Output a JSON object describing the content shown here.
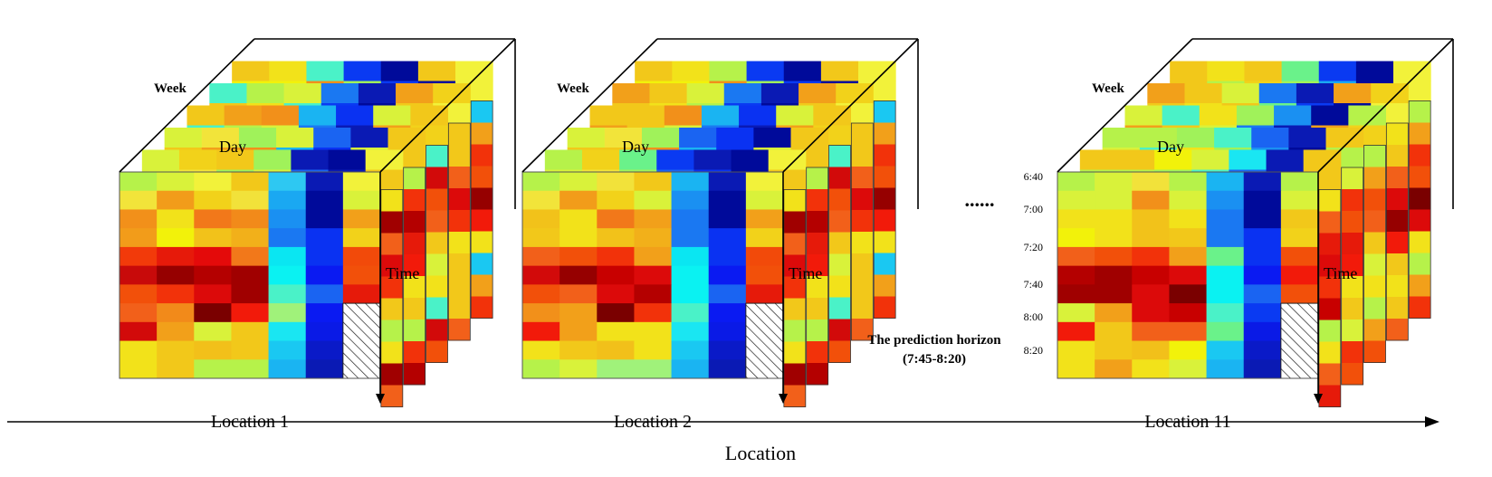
{
  "cubes": [
    {
      "caption": "Location 1",
      "week_label": "Week",
      "day_label": "Day",
      "time_label": "Time",
      "front": [
        [
          "#b6f24a",
          "#d9f23a",
          "#f2f23a",
          "#f2c81a",
          "#2ec8f2",
          "#0a1ab4",
          "#f2f23a"
        ],
        [
          "#f2e43a",
          "#f29c1a",
          "#f2d21a",
          "#f2e23a",
          "#1aa8f2",
          "#000a9a",
          "#d9f23a"
        ],
        [
          "#f2901a",
          "#f2e21a",
          "#f2781a",
          "#f28a1a",
          "#1a90f2",
          "#000a9a",
          "#f2a01a"
        ],
        [
          "#f29c1a",
          "#f2f20a",
          "#f2c21a",
          "#f2b01a",
          "#1a78f2",
          "#0a32f2",
          "#f2d21a"
        ],
        [
          "#f23a0a",
          "#e61a0a",
          "#e40a0a",
          "#f2781a",
          "#0ae6f2",
          "#0a32f2",
          "#f24a0a"
        ],
        [
          "#c80a0a",
          "#960000",
          "#b40000",
          "#a00000",
          "#0af2f2",
          "#0a1af2",
          "#f2500a"
        ],
        [
          "#f2500a",
          "#f2320a",
          "#dc0a0a",
          "#a00000",
          "#4af2c8",
          "#1a64f2",
          "#e61a0a"
        ],
        [
          "#f2601a",
          "#f28a1a",
          "#7a0000",
          "#f21a0a",
          "#a0f27a",
          "#0a1af2",
          "hatch"
        ],
        [
          "#d20a0a",
          "#f2a01a",
          "#d9f23a",
          "#f2c81a",
          "#1ae6f2",
          "#0a1ae6",
          "hatch"
        ],
        [
          "#f2e21a",
          "#f2c81a",
          "#f2c01a",
          "#f2c81a",
          "#1ac8f2",
          "#0a1ac8",
          "hatch"
        ],
        [
          "#f2e21a",
          "#f2c81a",
          "#b6f24a",
          "#b6f24a",
          "#1ab4f2",
          "#0a1ab4",
          "hatch"
        ]
      ],
      "back": [
        [
          "#f2f20a",
          "#f2f20a",
          "#f2901a",
          "#a0f25a",
          "#0a3af2",
          "#000a9a",
          "#f2f23a"
        ],
        [
          "#d9f23a",
          "#f2d21a",
          "#f2c81a",
          "#a0f25a",
          "#0a1ab4",
          "#000a9a",
          "#f2f23a"
        ],
        [
          "#d9f23a",
          "#f2e43a",
          "#a0f25a",
          "#d9f23a",
          "#1a64f2",
          "#0a1ab4",
          "#f2c81a"
        ],
        [
          "#f2c81a",
          "#f2a01a",
          "#f2901a",
          "#1ab4f2",
          "#0a32f2",
          "#d9f23a",
          "#f2c81a"
        ],
        [
          "#4af2c8",
          "#b6f24a",
          "#d9f23a",
          "#1a78f2",
          "#0a1ab4",
          "#f2a01a",
          "#f2d21a"
        ],
        [
          "#f2c81a",
          "#f2e21a",
          "#4af2c8",
          "#0a3af2",
          "#000a9a",
          "#f2c81a",
          "#f2f23a"
        ]
      ],
      "side": [
        [
          "#f2c81a",
          "#f2c81a",
          "#f2601a",
          "#dc0a0a",
          "#f2320a",
          "#f2e21a",
          "#f2c81a"
        ],
        [
          "#1ac8f2",
          "#f2a01a",
          "#f2320a",
          "#f2500a",
          "#960000",
          "#f21a0a",
          "#f2e21a"
        ],
        [
          "#f2e21a",
          "#a00000",
          "#f2601a",
          "#dc0a0a",
          "#f2320a",
          "#f2c81a",
          "#b6f24a"
        ],
        [
          "#b6f24a",
          "#f2320a",
          "#b40000",
          "#e61a0a",
          "#f21a0a",
          "#f2e21a",
          "#f2c81a"
        ],
        [
          "#4af2c8",
          "#d20a0a",
          "#f2500a",
          "#f2601a",
          "#f2c81a",
          "#d9f23a",
          "#f2e21a"
        ]
      ]
    },
    {
      "caption": "Location 2",
      "week_label": "Week",
      "day_label": "Day",
      "time_label": "Time",
      "front": [
        [
          "#b6f24a",
          "#d9f23a",
          "#f2e23a",
          "#f2c81a",
          "#1ab4f2",
          "#0a1ab4",
          "#f2f23a"
        ],
        [
          "#f2e43a",
          "#f29c1a",
          "#f2d21a",
          "#d9f23a",
          "#1a90f2",
          "#000a9a",
          "#d9f23a"
        ],
        [
          "#f2c21a",
          "#f2e21a",
          "#f2781a",
          "#f2a01a",
          "#1a78f2",
          "#000a9a",
          "#f2a01a"
        ],
        [
          "#f2c81a",
          "#f2e21a",
          "#f2c21a",
          "#f2b01a",
          "#1a78f2",
          "#0a32f2",
          "#f2d21a"
        ],
        [
          "#f2601a",
          "#f2500a",
          "#f2320a",
          "#f2a01a",
          "#0ae6f2",
          "#0a32f2",
          "#f24a0a"
        ],
        [
          "#d20a0a",
          "#960000",
          "#c80000",
          "#dc0a0a",
          "#0af2f2",
          "#0a1af2",
          "#f2500a"
        ],
        [
          "#f2500a",
          "#f2601a",
          "#dc0a0a",
          "#b40000",
          "#0af2f2",
          "#1a64f2",
          "#e61a0a"
        ],
        [
          "#f2901a",
          "#f2a01a",
          "#7a0000",
          "#f2320a",
          "#4af2c8",
          "#0a1af2",
          "hatch"
        ],
        [
          "#f21a0a",
          "#f2a01a",
          "#f2e21a",
          "#f2e21a",
          "#1ae6f2",
          "#0a1ae6",
          "hatch"
        ],
        [
          "#f2e21a",
          "#f2c81a",
          "#f2c01a",
          "#f2e21a",
          "#1ac8f2",
          "#0a1ac8",
          "hatch"
        ],
        [
          "#b6f24a",
          "#d9f23a",
          "#a0f27a",
          "#a0f27a",
          "#1ab4f2",
          "#0a1ab4",
          "hatch"
        ]
      ],
      "back": [
        [
          "#f2f20a",
          "#f2f20a",
          "#f2901a",
          "#a0f25a",
          "#0a3af2",
          "#000a9a",
          "#f2f23a"
        ],
        [
          "#b6f24a",
          "#f2d21a",
          "#6af28a",
          "#0a3af2",
          "#0a1ab4",
          "#000a9a",
          "#f2f23a"
        ],
        [
          "#d9f23a",
          "#f2e43a",
          "#a0f25a",
          "#1a64f2",
          "#0a32f2",
          "#000a9a",
          "#f2c81a"
        ],
        [
          "#f2c81a",
          "#f2c81a",
          "#f2901a",
          "#1ab4f2",
          "#0a32f2",
          "#d9f23a",
          "#f2c81a"
        ],
        [
          "#f2a01a",
          "#f2c81a",
          "#d9f23a",
          "#1a78f2",
          "#0a1ab4",
          "#f2a01a",
          "#f2d21a"
        ],
        [
          "#f2c81a",
          "#f2e21a",
          "#b6f24a",
          "#0a3af2",
          "#000a9a",
          "#f2c81a",
          "#f2f23a"
        ]
      ],
      "side": [
        [
          "#f2c81a",
          "#f2c81a",
          "#f2601a",
          "#dc0a0a",
          "#f2320a",
          "#f2e21a",
          "#f2c81a"
        ],
        [
          "#1ac8f2",
          "#f2a01a",
          "#f2320a",
          "#f2500a",
          "#960000",
          "#f21a0a",
          "#f2e21a"
        ],
        [
          "#f2e21a",
          "#a00000",
          "#f2601a",
          "#dc0a0a",
          "#f2320a",
          "#f2c81a",
          "#b6f24a"
        ],
        [
          "#b6f24a",
          "#f2320a",
          "#b40000",
          "#e61a0a",
          "#f21a0a",
          "#f2e21a",
          "#f2c81a"
        ],
        [
          "#4af2c8",
          "#d20a0a",
          "#f2500a",
          "#f2601a",
          "#f2c81a",
          "#d9f23a",
          "#f2e21a"
        ]
      ]
    },
    {
      "caption": "Location 11",
      "week_label": "Week",
      "day_label": "Day",
      "time_label": "Time",
      "front": [
        [
          "#b6f24a",
          "#d9f23a",
          "#f2e23a",
          "#b6f24a",
          "#1ab4f2",
          "#0a1ab4",
          "#b6f24a"
        ],
        [
          "#d9f23a",
          "#d9f23a",
          "#f2901a",
          "#d9f23a",
          "#1a90f2",
          "#000a9a",
          "#d9f23a"
        ],
        [
          "#f2e21a",
          "#f2e21a",
          "#f2c21a",
          "#f2e21a",
          "#1a78f2",
          "#000a9a",
          "#f2c81a"
        ],
        [
          "#f2f20a",
          "#f2e21a",
          "#f2c21a",
          "#f2c81a",
          "#1a78f2",
          "#0a32f2",
          "#f2d21a"
        ],
        [
          "#f2601a",
          "#f2500a",
          "#f2320a",
          "#f2a01a",
          "#6af28a",
          "#0a32f2",
          "#f2500a"
        ],
        [
          "#b40000",
          "#a00000",
          "#c80000",
          "#dc0a0a",
          "#0af2f2",
          "#0a1af2",
          "#f21a0a"
        ],
        [
          "#a00000",
          "#a00000",
          "#dc0a0a",
          "#7a0000",
          "#0af2f2",
          "#1a64f2",
          "#f2500a"
        ],
        [
          "#d9f23a",
          "#f2a01a",
          "#dc0a0a",
          "#c80000",
          "#4af2c8",
          "#0a3af2",
          "hatch"
        ],
        [
          "#f21a0a",
          "#f2c81a",
          "#f2601a",
          "#f2601a",
          "#6af28a",
          "#0a1ae6",
          "hatch"
        ],
        [
          "#f2e21a",
          "#f2c81a",
          "#f2c01a",
          "#f2f20a",
          "#1ac8f2",
          "#0a1ac8",
          "hatch"
        ],
        [
          "#f2e21a",
          "#f2a01a",
          "#f2e21a",
          "#d9f23a",
          "#1ab4f2",
          "#0a1ab4",
          "hatch"
        ]
      ],
      "back": [
        [
          "#f2c81a",
          "#b6f24a",
          "#f2d21a",
          "#a0f25a",
          "#1aa8f2",
          "#000a9a",
          "#f2f23a"
        ],
        [
          "#f2c81a",
          "#f2c81a",
          "#f2f20a",
          "#d9f23a",
          "#1ae6f2",
          "#0a1ab4",
          "#f2c81a"
        ],
        [
          "#b6f24a",
          "#b6f24a",
          "#a0f25a",
          "#4af2c8",
          "#1a64f2",
          "#0a1ab4",
          "#f2c81a"
        ],
        [
          "#d9f23a",
          "#4af2c8",
          "#f2e21a",
          "#a0f25a",
          "#1a90f2",
          "#000a9a",
          "#b6f24a"
        ],
        [
          "#f2a01a",
          "#f2c81a",
          "#d9f23a",
          "#1a78f2",
          "#0a1ab4",
          "#f2a01a",
          "#f2d21a"
        ],
        [
          "#f2c81a",
          "#f2e21a",
          "#f2c81a",
          "#6af28a",
          "#0a3af2",
          "#000a9a",
          "#f2f23a"
        ]
      ],
      "side": [
        [
          "#f2e21a",
          "#f2c81a",
          "#f2601a",
          "#dc0a0a",
          "#960000",
          "#f21a0a",
          "#f2c81a"
        ],
        [
          "#b6f24a",
          "#f2a01a",
          "#f2320a",
          "#f2500a",
          "#7a0000",
          "#dc0a0a",
          "#f2e21a"
        ],
        [
          "#f2e21a",
          "#f2601a",
          "#e61a0a",
          "#dc0a0a",
          "#f2320a",
          "#c80000",
          "#b6f24a"
        ],
        [
          "#d9f23a",
          "#f2320a",
          "#f2500a",
          "#e61a0a",
          "#f21a0a",
          "#f2e21a",
          "#f2c81a"
        ],
        [
          "#b6f24a",
          "#f2a01a",
          "#f2500a",
          "#f2601a",
          "#f2c81a",
          "#d9f23a",
          "#f2e21a"
        ]
      ]
    }
  ],
  "ellipsis": "......",
  "time_ticks": [
    "6:40",
    "7:00",
    "7:20",
    "7:40",
    "8:00",
    "8:20"
  ],
  "prediction": {
    "line1": "The prediction horizon",
    "line2": "(7:45-8:20)"
  },
  "axis_label": "Location"
}
